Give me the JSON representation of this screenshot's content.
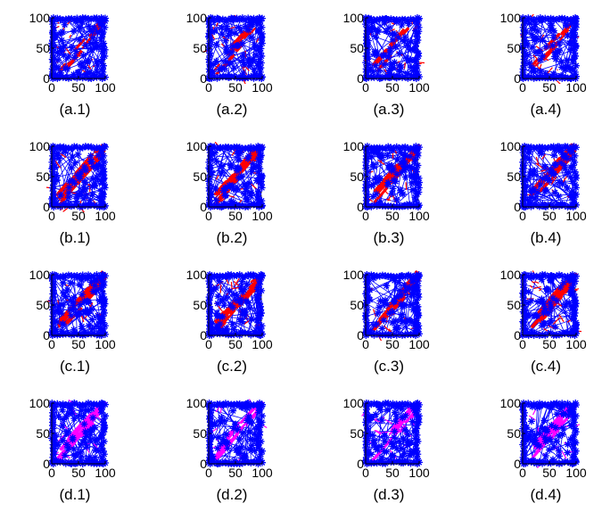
{
  "chart_data": {
    "type": "scatter",
    "grid_rows": 4,
    "grid_cols": 4,
    "xlim": [
      0,
      100
    ],
    "ylim": [
      0,
      100
    ],
    "xticks": [
      0,
      50,
      100
    ],
    "yticks": [
      0,
      50,
      100
    ],
    "grid": false,
    "legend": "none",
    "series_styles": [
      {
        "marker": "plus",
        "color": "#0000ff",
        "role": "nodes"
      },
      {
        "marker": "line",
        "color": "#ff0000",
        "role": "links-red"
      },
      {
        "marker": "line",
        "color": "#ff00ff",
        "role": "links-magenta"
      },
      {
        "marker": "dot",
        "color": "#000000",
        "role": "dotted-border"
      }
    ],
    "rows": [
      {
        "row": "a",
        "labels": [
          "(a.1)",
          "(a.2)",
          "(a.3)",
          "(a.4)"
        ],
        "link_color": "#ff0000",
        "diagonal_density": 0.3
      },
      {
        "row": "b",
        "labels": [
          "(b.1)",
          "(b.2)",
          "(b.3)",
          "(b.4)"
        ],
        "link_color": "#ff0000",
        "diagonal_density": 0.8
      },
      {
        "row": "c",
        "labels": [
          "(c.1)",
          "(c.2)",
          "(c.3)",
          "(c.4)"
        ],
        "link_color": "#ff0000",
        "diagonal_density": 0.9
      },
      {
        "row": "d",
        "labels": [
          "(d.1)",
          "(d.2)",
          "(d.3)",
          "(d.4)"
        ],
        "link_color": "#ff00ff",
        "diagonal_density": 0.6
      }
    ]
  }
}
